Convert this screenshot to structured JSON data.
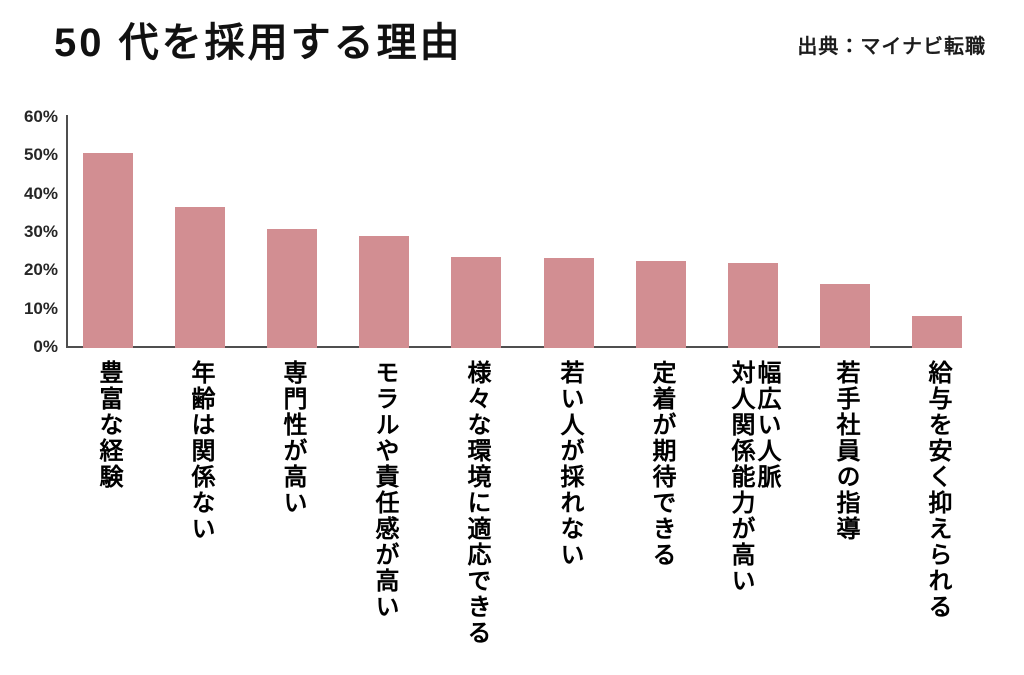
{
  "header": {
    "title": "50 代を採用する理由",
    "source": "出典：マイナビ転職"
  },
  "chart_data": {
    "type": "bar",
    "title": "50 代を採用する理由",
    "source": "出典：マイナビ転職",
    "categories": [
      "豊富な経験",
      "年齢は関係ない",
      "専門性が高い",
      "モラルや責任感が高い",
      "様々な環境に適応できる",
      "若い人が採れない",
      "定着が期待できる",
      "幅広い人脈\n対人関係能力が高い",
      "若手社員の指導",
      "給与を安く抑えられる"
    ],
    "values": [
      50.5,
      36.5,
      30.8,
      29,
      23.5,
      23.3,
      22.5,
      22,
      16.5,
      8
    ],
    "unit": "%",
    "xlabel": "",
    "ylabel": "",
    "ylim": [
      0,
      60
    ],
    "ytick_step": 10,
    "ytick_labels": [
      "0%",
      "10%",
      "20%",
      "30%",
      "40%",
      "50%",
      "60%"
    ],
    "grid": false,
    "legend_position": "none",
    "bar_color": "#d28e92",
    "axis_color": "#4f4f4f",
    "text_color": "#111111",
    "background": "#ffffff"
  }
}
